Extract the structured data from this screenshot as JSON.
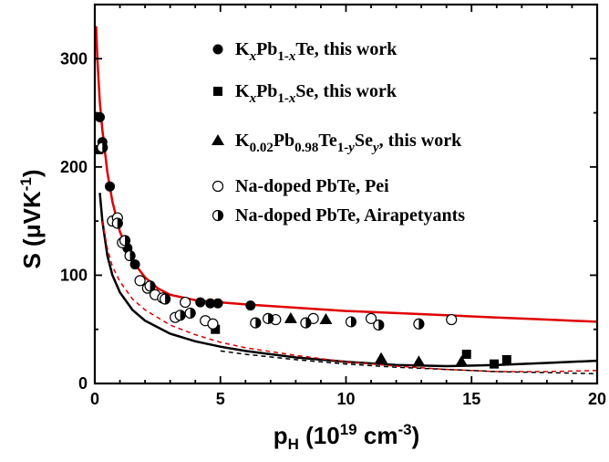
{
  "chart_data": {
    "type": "scatter",
    "xlim": [
      0,
      20
    ],
    "ylim": [
      0,
      350
    ],
    "x_ticks": [
      0,
      5,
      10,
      15,
      20
    ],
    "y_ticks": [
      0,
      100,
      200,
      300
    ],
    "x_tick_labels": [
      "0",
      "5",
      "10",
      "15",
      "20"
    ],
    "y_tick_labels": [
      "0",
      "100",
      "200",
      "300"
    ],
    "xlabel": {
      "main": "p",
      "sub": "H",
      "rest": " (10",
      "sup": "19",
      "unit": " cm",
      "sup2": "-3",
      "close": ")"
    },
    "ylabel": {
      "main": "S (μVK",
      "sup": "-1",
      "close": ")"
    },
    "legend_position": "top-right",
    "legend": [
      {
        "marker": "filled-circle",
        "parts": [
          {
            "t": "K"
          },
          {
            "t": "x",
            "sub": true,
            "italic": true
          },
          {
            "t": "Pb"
          },
          {
            "t": "1-",
            "sub": true
          },
          {
            "t": "x",
            "sub": true,
            "italic": true
          },
          {
            "t": "Te, this work"
          }
        ]
      },
      {
        "marker": "filled-square",
        "parts": [
          {
            "t": "K"
          },
          {
            "t": "x",
            "sub": true,
            "italic": true
          },
          {
            "t": "Pb"
          },
          {
            "t": "1-",
            "sub": true
          },
          {
            "t": "x",
            "sub": true,
            "italic": true
          },
          {
            "t": "Se, this work"
          }
        ]
      },
      {
        "marker": "filled-triangle",
        "parts": [
          {
            "t": "K"
          },
          {
            "t": "0.02",
            "sub": true
          },
          {
            "t": "Pb"
          },
          {
            "t": "0.98",
            "sub": true
          },
          {
            "t": "Te"
          },
          {
            "t": "1-",
            "sub": true
          },
          {
            "t": "y",
            "sub": true,
            "italic": true
          },
          {
            "t": "Se"
          },
          {
            "t": "y",
            "sub": true,
            "italic": true
          },
          {
            "t": ",  this work"
          }
        ]
      },
      {
        "marker": "open-circle",
        "parts": [
          {
            "t": "Na-doped PbTe, Pei"
          }
        ]
      },
      {
        "marker": "half-circle",
        "parts": [
          {
            "t": "Na-doped PbTe, Airapetyants"
          }
        ]
      }
    ],
    "series": [
      {
        "marker": "filled-circle",
        "points": [
          [
            0.2,
            246
          ],
          [
            0.3,
            223
          ],
          [
            0.6,
            182
          ],
          [
            1.3,
            125
          ],
          [
            1.6,
            110
          ],
          [
            4.2,
            75
          ],
          [
            4.6,
            74
          ],
          [
            4.9,
            74
          ],
          [
            6.2,
            72
          ]
        ]
      },
      {
        "marker": "filled-square",
        "points": [
          [
            0.15,
            216
          ],
          [
            4.8,
            50
          ],
          [
            14.8,
            27
          ],
          [
            15.9,
            18
          ],
          [
            16.4,
            22
          ]
        ]
      },
      {
        "marker": "filled-triangle",
        "points": [
          [
            7.8,
            60
          ],
          [
            9.2,
            59
          ],
          [
            11.4,
            23
          ],
          [
            12.9,
            20
          ],
          [
            14.6,
            20
          ]
        ]
      },
      {
        "marker": "open-circle",
        "points": [
          [
            0.7,
            150
          ],
          [
            0.9,
            153
          ],
          [
            1.1,
            130
          ],
          [
            1.8,
            95
          ],
          [
            2.1,
            88
          ],
          [
            2.4,
            82
          ],
          [
            2.7,
            79
          ],
          [
            3.2,
            61
          ],
          [
            3.6,
            75
          ],
          [
            4.4,
            58
          ],
          [
            4.7,
            55
          ],
          [
            7.2,
            59
          ],
          [
            8.7,
            60
          ],
          [
            11.0,
            60
          ],
          [
            14.2,
            59
          ]
        ]
      },
      {
        "marker": "half-circle",
        "points": [
          [
            0.3,
            218
          ],
          [
            0.9,
            148
          ],
          [
            1.2,
            132
          ],
          [
            1.4,
            118
          ],
          [
            2.2,
            90
          ],
          [
            2.8,
            78
          ],
          [
            3.4,
            63
          ],
          [
            3.8,
            65
          ],
          [
            6.4,
            56
          ],
          [
            6.9,
            60
          ],
          [
            8.4,
            56
          ],
          [
            10.2,
            57
          ],
          [
            11.3,
            54
          ],
          [
            12.9,
            55
          ]
        ]
      }
    ],
    "curves": [
      {
        "color": "#e00000",
        "style": "solid",
        "points": [
          [
            0.05,
            330
          ],
          [
            0.1,
            300
          ],
          [
            0.2,
            260
          ],
          [
            0.3,
            234
          ],
          [
            0.5,
            195
          ],
          [
            0.7,
            168
          ],
          [
            1.0,
            140
          ],
          [
            1.5,
            113
          ],
          [
            2.0,
            98
          ],
          [
            2.5,
            88
          ],
          [
            3.0,
            82
          ],
          [
            4.0,
            77
          ],
          [
            5.0,
            75
          ],
          [
            6.0,
            73
          ],
          [
            8.0,
            70
          ],
          [
            10.0,
            67
          ],
          [
            12.0,
            65
          ],
          [
            14.0,
            63
          ],
          [
            16.0,
            61
          ],
          [
            18.0,
            59
          ],
          [
            20.0,
            57
          ]
        ]
      },
      {
        "color": "#000000",
        "style": "solid",
        "points": [
          [
            0.2,
            176
          ],
          [
            0.3,
            150
          ],
          [
            0.5,
            118
          ],
          [
            0.7,
            100
          ],
          [
            1.0,
            84
          ],
          [
            1.5,
            68
          ],
          [
            2.0,
            58
          ],
          [
            3.0,
            46
          ],
          [
            4.0,
            39
          ],
          [
            5.0,
            34
          ],
          [
            6.0,
            30
          ],
          [
            8.0,
            24
          ],
          [
            10.0,
            20
          ],
          [
            12.0,
            17
          ],
          [
            14.0,
            16
          ],
          [
            16.0,
            17
          ],
          [
            18.0,
            19
          ],
          [
            20.0,
            21
          ]
        ]
      },
      {
        "color": "#e00000",
        "style": "dashed",
        "points": [
          [
            0.3,
            150
          ],
          [
            0.5,
            125
          ],
          [
            0.7,
            108
          ],
          [
            1.0,
            94
          ],
          [
            1.5,
            78
          ],
          [
            2.0,
            68
          ],
          [
            3.0,
            54
          ],
          [
            4.0,
            45
          ],
          [
            5.0,
            38
          ],
          [
            6.0,
            33
          ],
          [
            8.0,
            26
          ],
          [
            10.0,
            20
          ],
          [
            12.0,
            16
          ],
          [
            14.0,
            13
          ],
          [
            16.0,
            11
          ],
          [
            18.0,
            11
          ],
          [
            20.0,
            12
          ]
        ]
      },
      {
        "color": "#000000",
        "style": "dashed",
        "points": [
          [
            5.0,
            30
          ],
          [
            6.0,
            27
          ],
          [
            8.0,
            22
          ],
          [
            10.0,
            18
          ],
          [
            12.0,
            15
          ],
          [
            14.0,
            13
          ],
          [
            16.0,
            11
          ],
          [
            18.0,
            10
          ],
          [
            20.0,
            9
          ]
        ]
      }
    ]
  }
}
